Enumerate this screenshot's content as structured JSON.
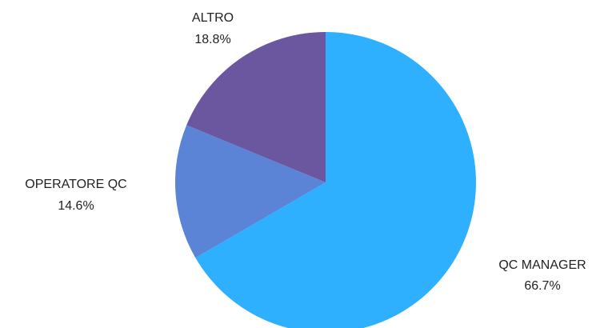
{
  "chart_data": {
    "type": "pie",
    "slices": [
      {
        "label": "QC MANAGER",
        "value": 66.7,
        "value_label": "66.7%",
        "color": "#2eb0ff"
      },
      {
        "label": "OPERATORE QC",
        "value": 14.6,
        "value_label": "14.6%",
        "color": "#5b84d6"
      },
      {
        "label": "ALTRO",
        "value": 18.8,
        "value_label": "18.8%",
        "color": "#6a57a0"
      }
    ],
    "start": "top",
    "direction": "clockwise",
    "legend": "none"
  }
}
